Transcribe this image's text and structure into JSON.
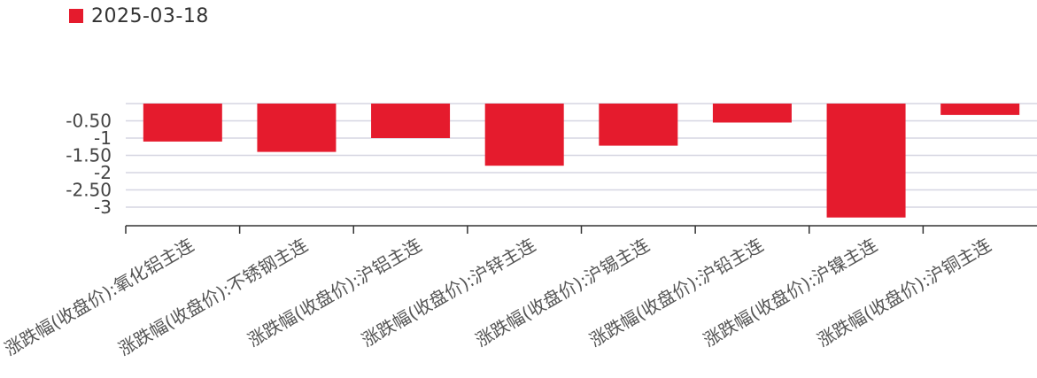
{
  "colors": {
    "bar": "#e51b2d",
    "grid": "#d6d6e2",
    "axis": "#333333",
    "text": "#444444"
  },
  "chart_data": {
    "type": "bar",
    "categories": [
      "涨跌幅(收盘价):氧化铝主连",
      "涨跌幅(收盘价):不锈钢主连",
      "涨跌幅(收盘价):沪铝主连",
      "涨跌幅(收盘价):沪锌主连",
      "涨跌幅(收盘价):沪锡主连",
      "涨跌幅(收盘价):沪铅主连",
      "涨跌幅(收盘价):沪镍主连",
      "涨跌幅(收盘价):沪铜主连"
    ],
    "series": [
      {
        "name": "2025-03-18",
        "values": [
          -1.1,
          -1.4,
          -1.0,
          -1.8,
          -1.22,
          -0.55,
          -3.3,
          -0.33
        ]
      }
    ],
    "yticks": [
      -0.5,
      -1,
      -1.5,
      -2,
      -2.5,
      -3
    ],
    "ytick_labels": [
      "-0.50",
      "-1",
      "-1.50",
      "-2",
      "-2.50",
      "-3"
    ],
    "ylim": [
      -3.5,
      0
    ],
    "grid": true,
    "legend_position": "top-left",
    "category_label_rotation": -30
  }
}
